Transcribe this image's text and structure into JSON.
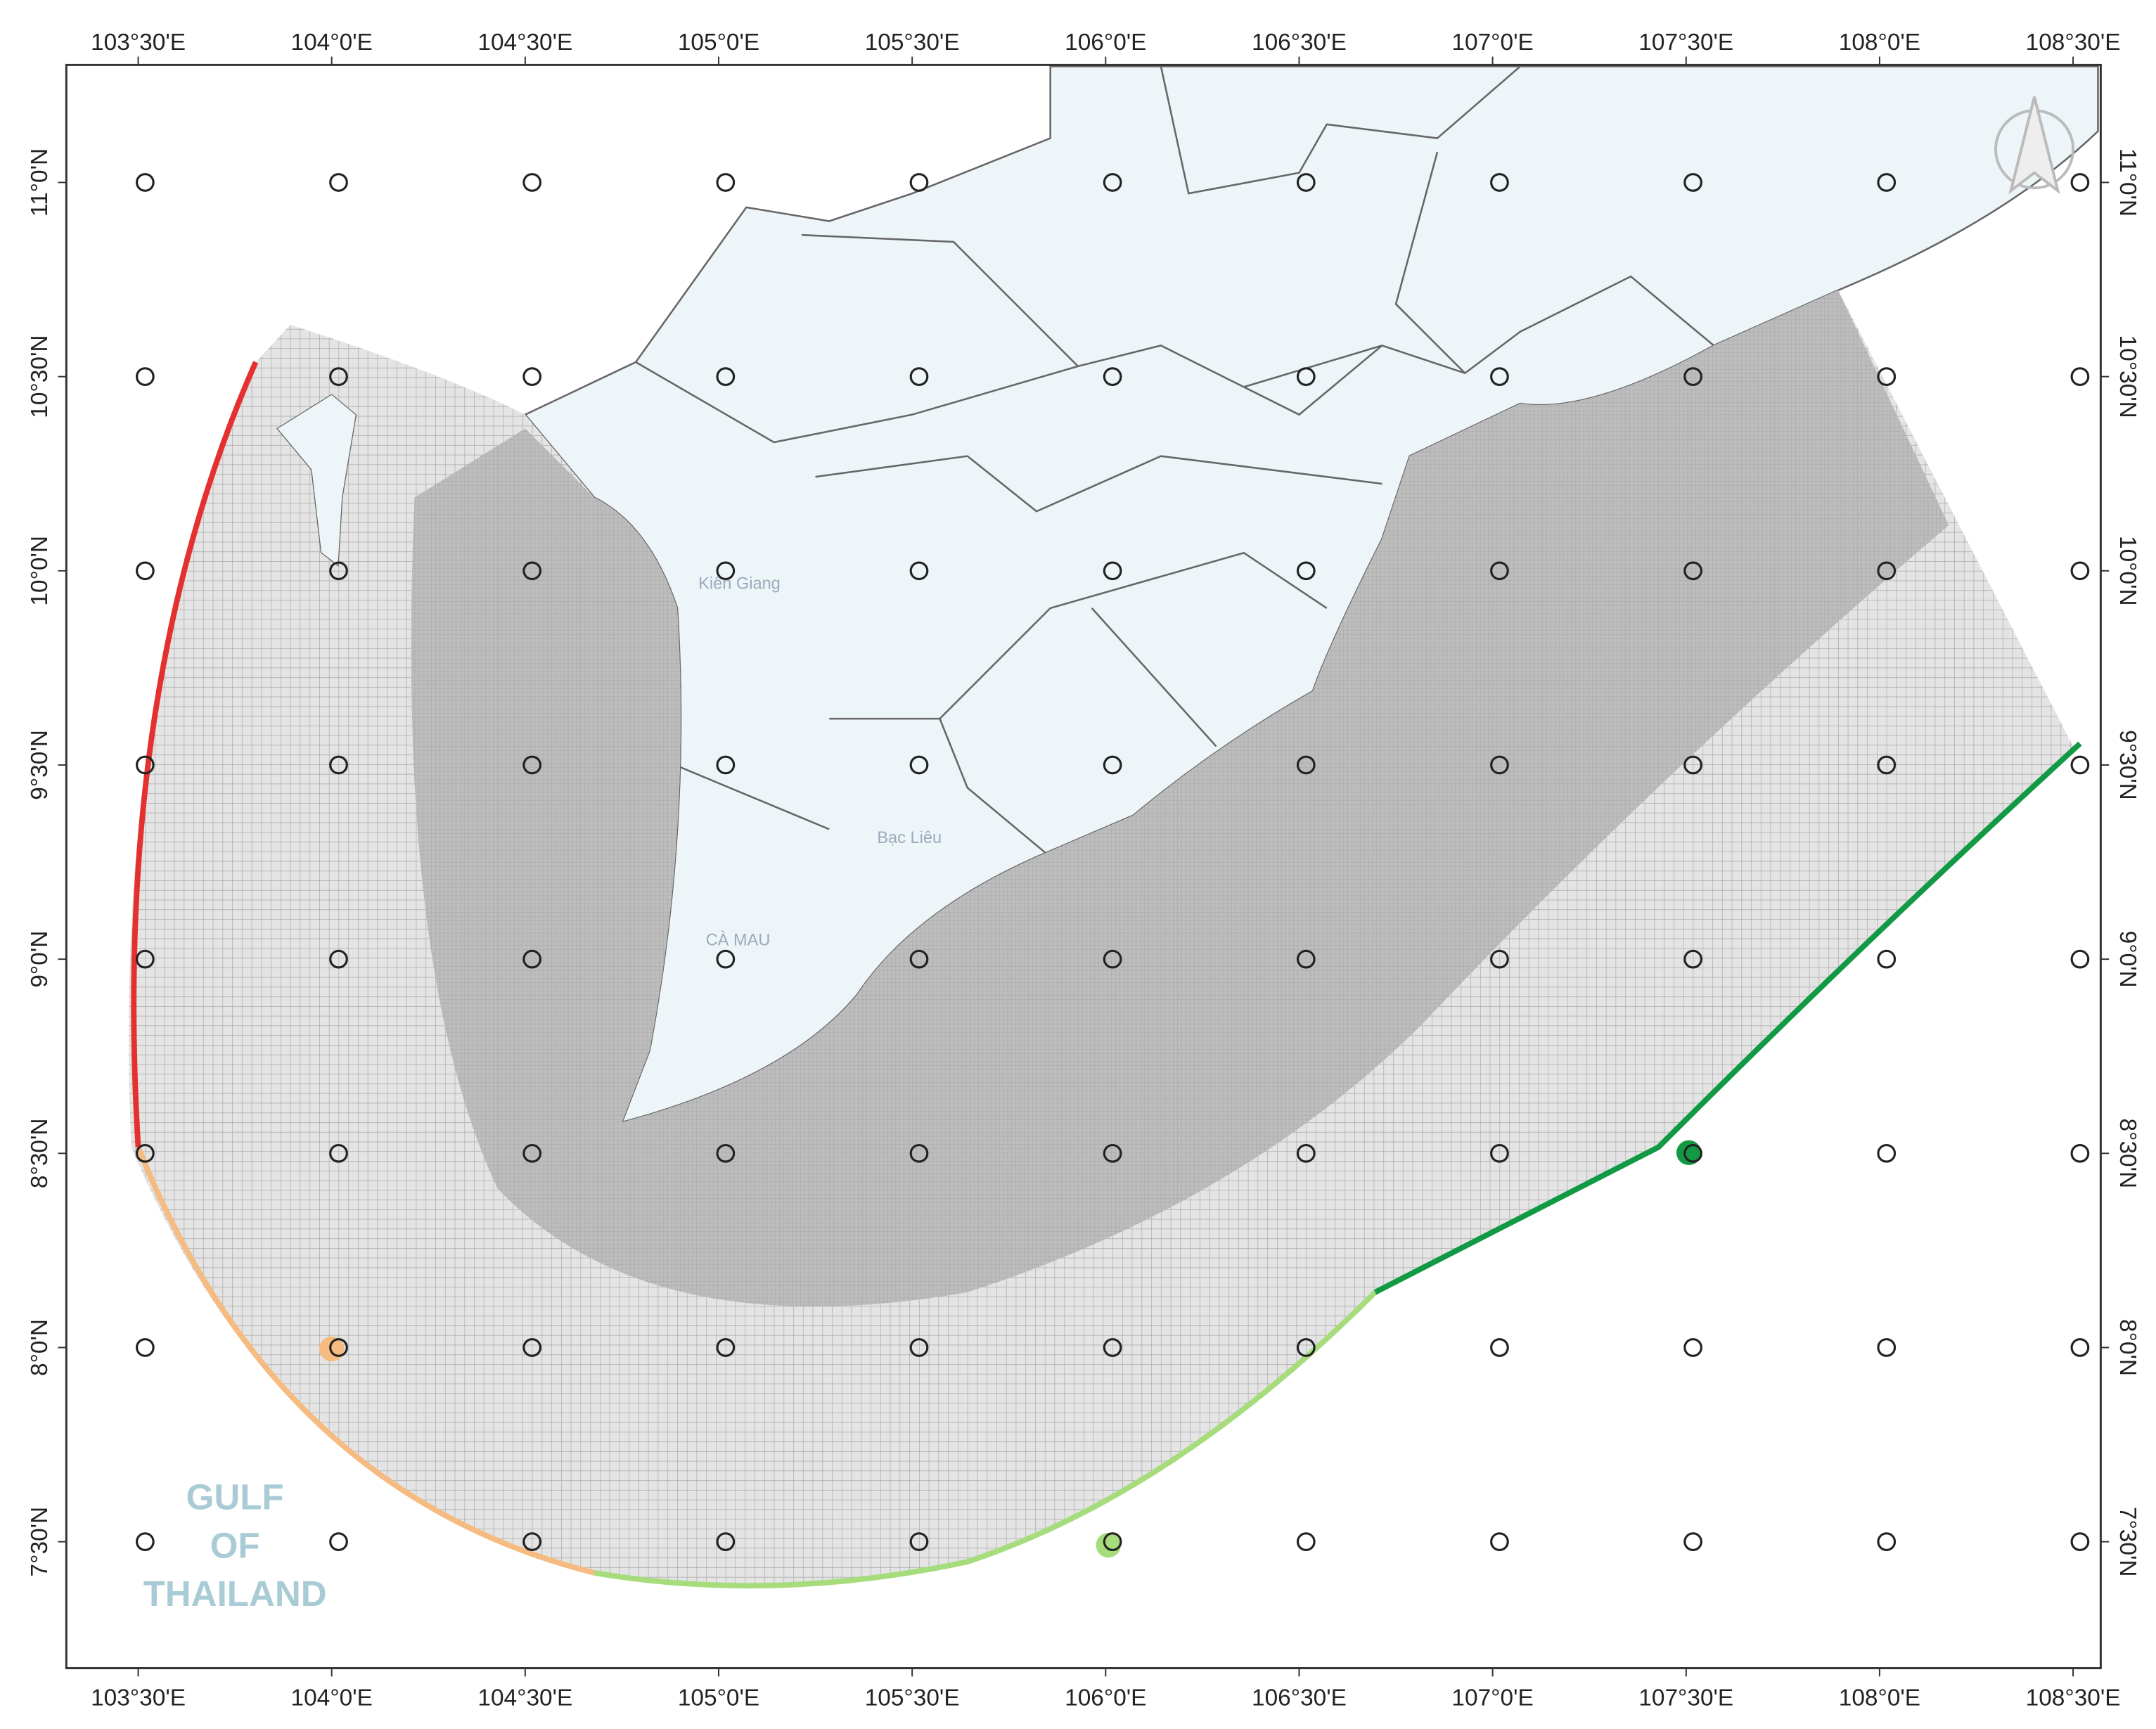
{
  "map": {
    "lon_ticks": [
      {
        "value": 103.5,
        "label": "103°30'E"
      },
      {
        "value": 104,
        "label": "104°0'E"
      },
      {
        "value": 104.5,
        "label": "104°30'E"
      },
      {
        "value": 105,
        "label": "105°0'E"
      },
      {
        "value": 105.5,
        "label": "105°30'E"
      },
      {
        "value": 106,
        "label": "106°0'E"
      },
      {
        "value": 106.5,
        "label": "106°30'E"
      },
      {
        "value": 107,
        "label": "107°0'E"
      },
      {
        "value": 107.5,
        "label": "107°30'E"
      },
      {
        "value": 108,
        "label": "108°0'E"
      },
      {
        "value": 108.5,
        "label": "108°30'E"
      }
    ],
    "lat_ticks": [
      {
        "value": 11,
        "label": "11°0'N"
      },
      {
        "value": 10.5,
        "label": "10°30'N"
      },
      {
        "value": 10,
        "label": "10°0'N"
      },
      {
        "value": 9.5,
        "label": "9°30'N"
      },
      {
        "value": 9,
        "label": "9°0'N"
      },
      {
        "value": 8.5,
        "label": "8°30'N"
      },
      {
        "value": 8,
        "label": "8°0'N"
      },
      {
        "value": 7.5,
        "label": "7°30'N"
      }
    ],
    "provinces": [
      "Kiên Giang",
      "Bạc Liêu",
      "CÀ MAU"
    ],
    "gulf_label": [
      "GULF",
      "OF",
      "THAILAND"
    ]
  }
}
